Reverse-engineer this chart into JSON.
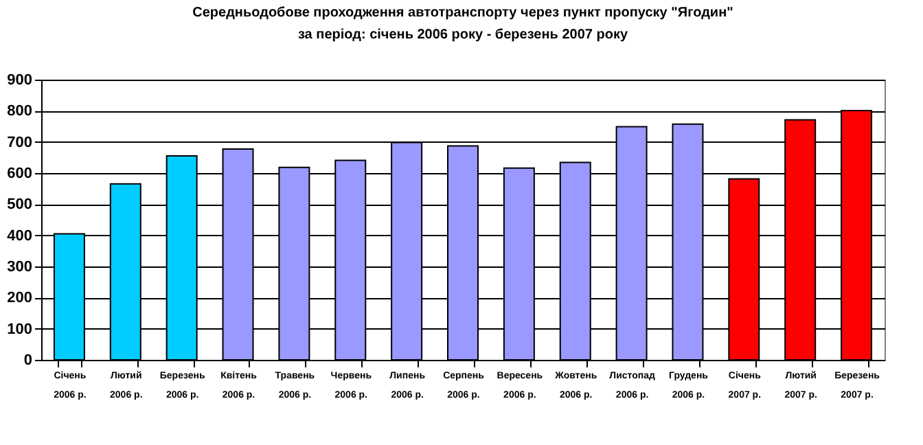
{
  "chart_data": {
    "type": "bar",
    "title": "Середньодобове проходження автотранспорту через пункт пропуску \"Ягодин\"",
    "subtitle": "за період: січень 2006 року - березень 2007 року",
    "categories": [
      "Січень 2006 р.",
      "Лютий 2006 р.",
      "Березень 2006 р.",
      "Квітень 2006 р.",
      "Травень 2006 р.",
      "Червень 2006 р.",
      "Липень 2006 р.",
      "Серпень 2006 р.",
      "Вересень 2006 р.",
      "Жовтень 2006 р.",
      "Листопад 2006 р.",
      "Грудень 2006 р.",
      "Січень 2007 р.",
      "Лютий 2007 р.",
      "Березень 2007 р."
    ],
    "values": [
      405,
      565,
      655,
      677,
      618,
      641,
      698,
      687,
      616,
      634,
      749,
      757,
      581,
      771,
      801
    ],
    "colors": [
      "#00ccff",
      "#00ccff",
      "#00ccff",
      "#9999ff",
      "#9999ff",
      "#9999ff",
      "#9999ff",
      "#9999ff",
      "#9999ff",
      "#9999ff",
      "#9999ff",
      "#9999ff",
      "#ff0000",
      "#ff0000",
      "#ff0000"
    ],
    "ylim": [
      0,
      900
    ],
    "yticks": [
      0,
      100,
      200,
      300,
      400,
      500,
      600,
      700,
      800,
      900
    ],
    "grid": "y"
  }
}
